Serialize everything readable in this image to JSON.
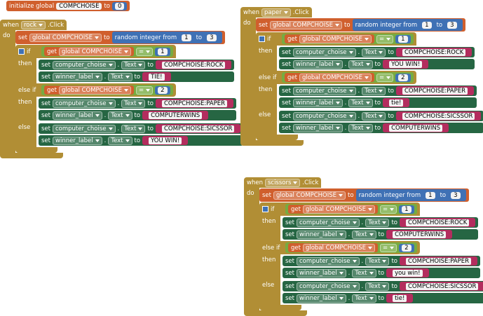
{
  "init": {
    "keyword": "initialize global",
    "name": "COMPCHOISE",
    "to": "to",
    "value": 0
  },
  "handlers": [
    {
      "when": "when",
      "component": "rock",
      "event": ".Click",
      "do": "do",
      "assign": {
        "set": "set",
        "variable": "global COMPCHOISE",
        "to": "to",
        "function": "random integer from",
        "from": 1,
        "and": "to",
        "upto": 3
      },
      "conditional": {
        "branches": [
          {
            "label": "if",
            "get": "get",
            "variable": "global COMPCHOISE",
            "operator": "=",
            "value": 1,
            "then": "then",
            "statements": [
              {
                "set": "set",
                "component": "computer_choise",
                "dot": ".",
                "property": "Text",
                "to": "to",
                "text": "COMPCHOISE:ROCK"
              },
              {
                "set": "set",
                "component": "winner_label",
                "dot": ".",
                "property": "Text",
                "to": "to",
                "text": "TIE!"
              }
            ]
          },
          {
            "label": "else if",
            "get": "get",
            "variable": "global COMPCHOISE",
            "operator": "=",
            "value": 2,
            "then": "then",
            "statements": [
              {
                "set": "set",
                "component": "computer_choise",
                "dot": ".",
                "property": "Text",
                "to": "to",
                "text": "COMPCHOISE:PAPER"
              },
              {
                "set": "set",
                "component": "winner_label",
                "dot": ".",
                "property": "Text",
                "to": "to",
                "text": "COMPUTERWINS"
              }
            ]
          }
        ],
        "else": {
          "label": "else",
          "statements": [
            {
              "set": "set",
              "component": "computer_choise",
              "dot": ".",
              "property": "Text",
              "to": "to",
              "text": "COMPCHOISE:SICSSOR"
            },
            {
              "set": "set",
              "component": "winner_label",
              "dot": ".",
              "property": "Text",
              "to": "to",
              "text": "YOU WIN!"
            }
          ]
        }
      }
    },
    {
      "when": "when",
      "component": "paper",
      "event": ".Click",
      "do": "do",
      "assign": {
        "set": "set",
        "variable": "global COMPCHOISE",
        "to": "to",
        "function": "random integer from",
        "from": 1,
        "and": "to",
        "upto": 3
      },
      "conditional": {
        "branches": [
          {
            "label": "if",
            "get": "get",
            "variable": "global COMPCHOISE",
            "operator": "=",
            "value": 1,
            "then": "then",
            "statements": [
              {
                "set": "set",
                "component": "computer_choise",
                "dot": ".",
                "property": "Text",
                "to": "to",
                "text": "COMPCHOISE:ROCK"
              },
              {
                "set": "set",
                "component": "winner_label",
                "dot": ".",
                "property": "Text",
                "to": "to",
                "text": "YOU WIN!"
              }
            ]
          },
          {
            "label": "else if",
            "get": "get",
            "variable": "global COMPCHOISE",
            "operator": "=",
            "value": 2,
            "then": "then",
            "statements": [
              {
                "set": "set",
                "component": "computer_choise",
                "dot": ".",
                "property": "Text",
                "to": "to",
                "text": "COMPCHOISE:PAPER"
              },
              {
                "set": "set",
                "component": "winner_label",
                "dot": ".",
                "property": "Text",
                "to": "to",
                "text": "tie!"
              }
            ]
          }
        ],
        "else": {
          "label": "else",
          "statements": [
            {
              "set": "set",
              "component": "computer_choise",
              "dot": ".",
              "property": "Text",
              "to": "to",
              "text": "COMPCHOISE:SICSSOR"
            },
            {
              "set": "set",
              "component": "winner_label",
              "dot": ".",
              "property": "Text",
              "to": "to",
              "text": "COMPUTERWINS"
            }
          ]
        }
      }
    },
    {
      "when": "when",
      "component": "scissors",
      "event": ".Click",
      "do": "do",
      "assign": {
        "set": "set",
        "variable": "global COMPCHOISE",
        "to": "to",
        "function": "random integer from",
        "from": 1,
        "and": "to",
        "upto": 3
      },
      "conditional": {
        "branches": [
          {
            "label": "if",
            "get": "get",
            "variable": "global COMPCHOISE",
            "operator": "=",
            "value": 1,
            "then": "then",
            "statements": [
              {
                "set": "set",
                "component": "computer_choise",
                "dot": ".",
                "property": "Text",
                "to": "to",
                "text": "COMPCHOISE:ROCK"
              },
              {
                "set": "set",
                "component": "winner_label",
                "dot": ".",
                "property": "Text",
                "to": "to",
                "text": "COMPUTERWINS"
              }
            ]
          },
          {
            "label": "else if",
            "get": "get",
            "variable": "global COMPCHOISE",
            "operator": "=",
            "value": 2,
            "then": "then",
            "statements": [
              {
                "set": "set",
                "component": "computer_choise",
                "dot": ".",
                "property": "Text",
                "to": "to",
                "text": "COMPCHOISE:PAPER"
              },
              {
                "set": "set",
                "component": "winner_label",
                "dot": ".",
                "property": "Text",
                "to": "to",
                "text": "you win!"
              }
            ]
          }
        ],
        "else": {
          "label": "else",
          "statements": [
            {
              "set": "set",
              "component": "computer_choise",
              "dot": ".",
              "property": "Text",
              "to": "to",
              "text": "COMPCHOISE:SICSSOR"
            },
            {
              "set": "set",
              "component": "winner_label",
              "dot": ".",
              "property": "Text",
              "to": "to",
              "text": "tie!"
            }
          ]
        }
      }
    }
  ]
}
